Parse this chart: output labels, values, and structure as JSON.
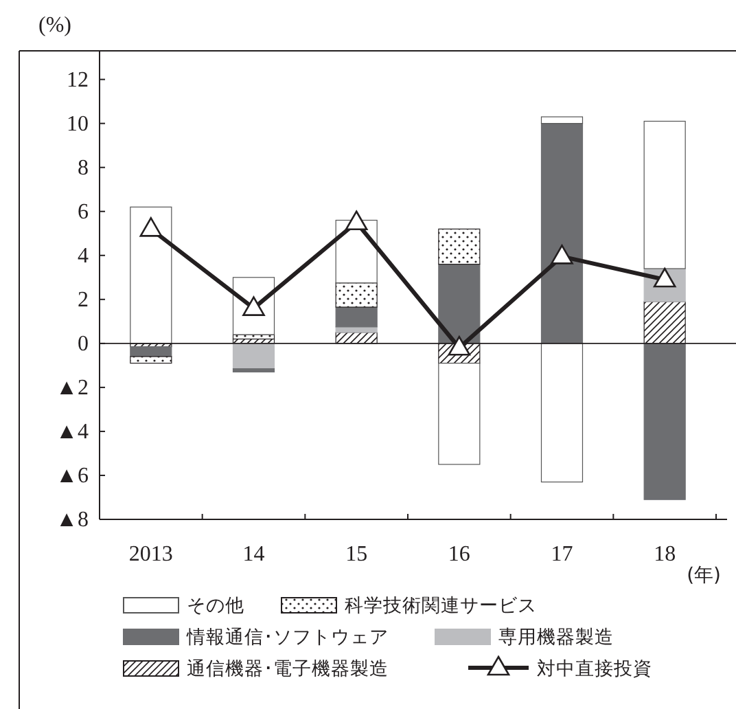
{
  "chart_data": {
    "type": "bar",
    "stacked": true,
    "ylabel": "(%)",
    "xlabel": "(年)",
    "categories": [
      "2013",
      "14",
      "15",
      "16",
      "17",
      "18"
    ],
    "ylim": [
      -8,
      13.3
    ],
    "yticks": [
      {
        "value": -8,
        "label": "▲8"
      },
      {
        "value": -6,
        "label": "▲6"
      },
      {
        "value": -4,
        "label": "▲4"
      },
      {
        "value": -2,
        "label": "▲2"
      },
      0,
      2,
      4,
      6,
      8,
      10,
      12
    ],
    "legend": "bottom",
    "marker": "triangle",
    "series": [
      {
        "name": "通信機器･電子機器製造",
        "color": "#231f20",
        "values": [
          -0.15,
          0.2,
          0.5,
          -0.9,
          0,
          1.9
        ]
      },
      {
        "name": "専用機器製造",
        "color": "#bcbdc0",
        "values": [
          0,
          -1.15,
          0.25,
          0,
          0,
          1.5
        ]
      },
      {
        "name": "情報通信･ソフトウェア",
        "color": "#6d6e71",
        "values": [
          -0.45,
          -0.15,
          0.9,
          3.6,
          10.0,
          -7.1
        ]
      },
      {
        "name": "科学技術関連サービス",
        "color": "#231f20",
        "values": [
          -0.3,
          0.2,
          1.1,
          1.6,
          0,
          0
        ]
      },
      {
        "name": "その他",
        "color": "#ffffff",
        "values": [
          6.2,
          2.6,
          2.85,
          -4.6,
          -6.3,
          6.7
        ]
      },
      {
        "color": "#ffffff",
        "values": [
          0,
          0,
          0,
          0,
          0.3,
          0
        ]
      },
      {
        "name": "対中直接投資",
        "type": "line",
        "color": "#231f20",
        "values": [
          5.2,
          1.6,
          5.5,
          -0.2,
          3.95,
          2.9
        ]
      }
    ]
  }
}
